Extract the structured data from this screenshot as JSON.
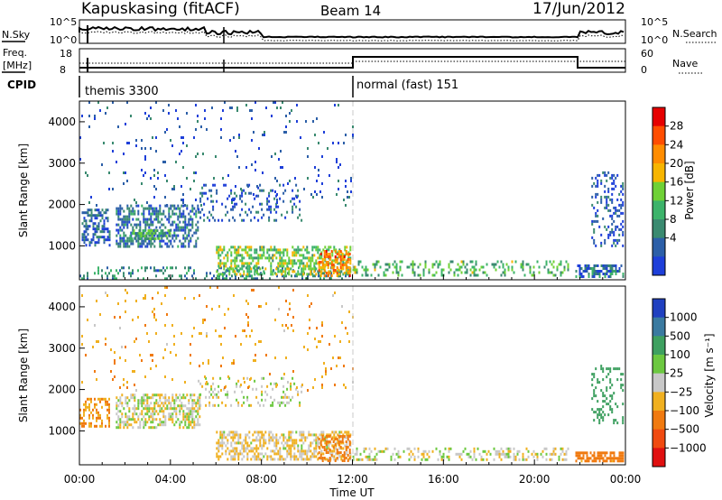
{
  "header": {
    "station": "Kapuskasing (fitACF)",
    "beam": "Beam 14",
    "date": "17/Jun/2012"
  },
  "param_panels": {
    "nsky_label": "N.Sky",
    "nsearch_label": "N.Search",
    "freq_label_1": "Freq.",
    "freq_label_2": "[MHz]",
    "nave_label": "Nave",
    "cpid_label": "CPID",
    "nsky_ticks": [
      "10^5",
      "10^0"
    ],
    "nsearch_ticks": [
      "10^5",
      "10^0"
    ],
    "freq_ticks": [
      "18",
      "8"
    ],
    "nave_ticks": [
      "60",
      "0"
    ],
    "cpid_segments": [
      {
        "label": "themis 3300",
        "start_hour": 0,
        "end_hour": 12
      },
      {
        "label": "normal (fast) 151",
        "start_hour": 12,
        "end_hour": 24
      }
    ]
  },
  "axis": {
    "ylabel": "Slant Range [km]",
    "xlabel": "Time UT",
    "xticks": [
      "00:00",
      "04:00",
      "08:00",
      "12:00",
      "16:00",
      "20:00",
      "00:00"
    ],
    "yticks": [
      "1000",
      "2000",
      "3000",
      "4000"
    ]
  },
  "colorbars": {
    "power": {
      "label": "Power [dB]",
      "ticks": [
        "28",
        "24",
        "20",
        "16",
        "12",
        "8",
        "4"
      ],
      "colors": [
        "#e60000",
        "#ff4d00",
        "#ff8c00",
        "#f7b500",
        "#6fd136",
        "#3cb36a",
        "#3a8a70",
        "#2c5fa8",
        "#1e3fd9"
      ]
    },
    "velocity": {
      "label": "Velocity [m s⁻¹]",
      "ticks": [
        "1000",
        "500",
        "100",
        "25",
        "−25",
        "−100",
        "−500",
        "−1000"
      ],
      "colors": [
        "#2040c0",
        "#3a7aa0",
        "#3ea060",
        "#6cc840",
        "#c8c8c8",
        "#f0b020",
        "#f07a10",
        "#f04a10",
        "#e01010"
      ]
    }
  },
  "chart_data": [
    {
      "type": "heatmap",
      "name": "power",
      "xlabel": "Time UT",
      "ylabel": "Slant Range [km]",
      "x_range_hours": [
        0,
        24
      ],
      "ylim": [
        180,
        4500
      ],
      "color_range": [
        0,
        30
      ],
      "regions": [
        {
          "t0": 0.1,
          "t1": 1.3,
          "r0": 1000,
          "r1": 1900,
          "level": 5,
          "density": 0.55
        },
        {
          "t0": 1.6,
          "t1": 5.2,
          "r0": 1000,
          "r1": 2000,
          "level": 6,
          "density": 0.5
        },
        {
          "t0": 2.2,
          "t1": 4.0,
          "r0": 1200,
          "r1": 1400,
          "level": 11,
          "density": 0.6
        },
        {
          "t0": 5.2,
          "t1": 9.8,
          "r0": 1600,
          "r1": 2500,
          "level": 4,
          "density": 0.18
        },
        {
          "t0": 0.0,
          "t1": 11.9,
          "r0": 200,
          "r1": 500,
          "level": 8,
          "density": 0.25
        },
        {
          "t0": 6.0,
          "t1": 11.9,
          "r0": 300,
          "r1": 1000,
          "level": 14,
          "density": 0.5
        },
        {
          "t0": 10.5,
          "t1": 11.9,
          "r0": 300,
          "r1": 900,
          "level": 22,
          "density": 0.55
        },
        {
          "t0": 12.0,
          "t1": 21.5,
          "r0": 300,
          "r1": 650,
          "level": 12,
          "density": 0.28
        },
        {
          "t0": 21.8,
          "t1": 23.9,
          "r0": 280,
          "r1": 550,
          "level": 6,
          "density": 0.6
        },
        {
          "t0": 22.5,
          "t1": 23.9,
          "r0": 1000,
          "r1": 2800,
          "level": 4,
          "density": 0.25
        },
        {
          "t0": 0.0,
          "t1": 12.0,
          "r0": 2000,
          "r1": 4500,
          "level": 4,
          "density": 0.035
        }
      ]
    },
    {
      "type": "heatmap",
      "name": "velocity",
      "xlabel": "Time UT",
      "ylabel": "Slant Range [km]",
      "x_range_hours": [
        0,
        24
      ],
      "ylim": [
        180,
        4500
      ],
      "color_range": [
        -1000,
        1000
      ],
      "regions": [
        {
          "t0": 0.0,
          "t1": 1.3,
          "r0": 1100,
          "r1": 1800,
          "vel": -100,
          "density": 0.4
        },
        {
          "t0": 1.6,
          "t1": 5.3,
          "r0": 1100,
          "r1": 1900,
          "vel": 0,
          "density": 0.55
        },
        {
          "t0": 5.2,
          "t1": 9.8,
          "r0": 1600,
          "r1": 2300,
          "vel": 10,
          "density": 0.2
        },
        {
          "t0": 6.0,
          "t1": 11.9,
          "r0": 300,
          "r1": 1000,
          "vel": -30,
          "density": 0.5
        },
        {
          "t0": 10.5,
          "t1": 11.9,
          "r0": 300,
          "r1": 900,
          "vel": -200,
          "density": 0.35
        },
        {
          "t0": 12.0,
          "t1": 21.5,
          "r0": 300,
          "r1": 600,
          "vel": 0,
          "density": 0.3
        },
        {
          "t0": 21.8,
          "t1": 23.9,
          "r0": 280,
          "r1": 500,
          "vel": -150,
          "density": 0.7
        },
        {
          "t0": 22.5,
          "t1": 23.9,
          "r0": 1200,
          "r1": 2600,
          "vel": 400,
          "density": 0.25
        },
        {
          "t0": 0.0,
          "t1": 12.0,
          "r0": 2000,
          "r1": 4500,
          "vel": -80,
          "density": 0.03
        }
      ]
    }
  ]
}
